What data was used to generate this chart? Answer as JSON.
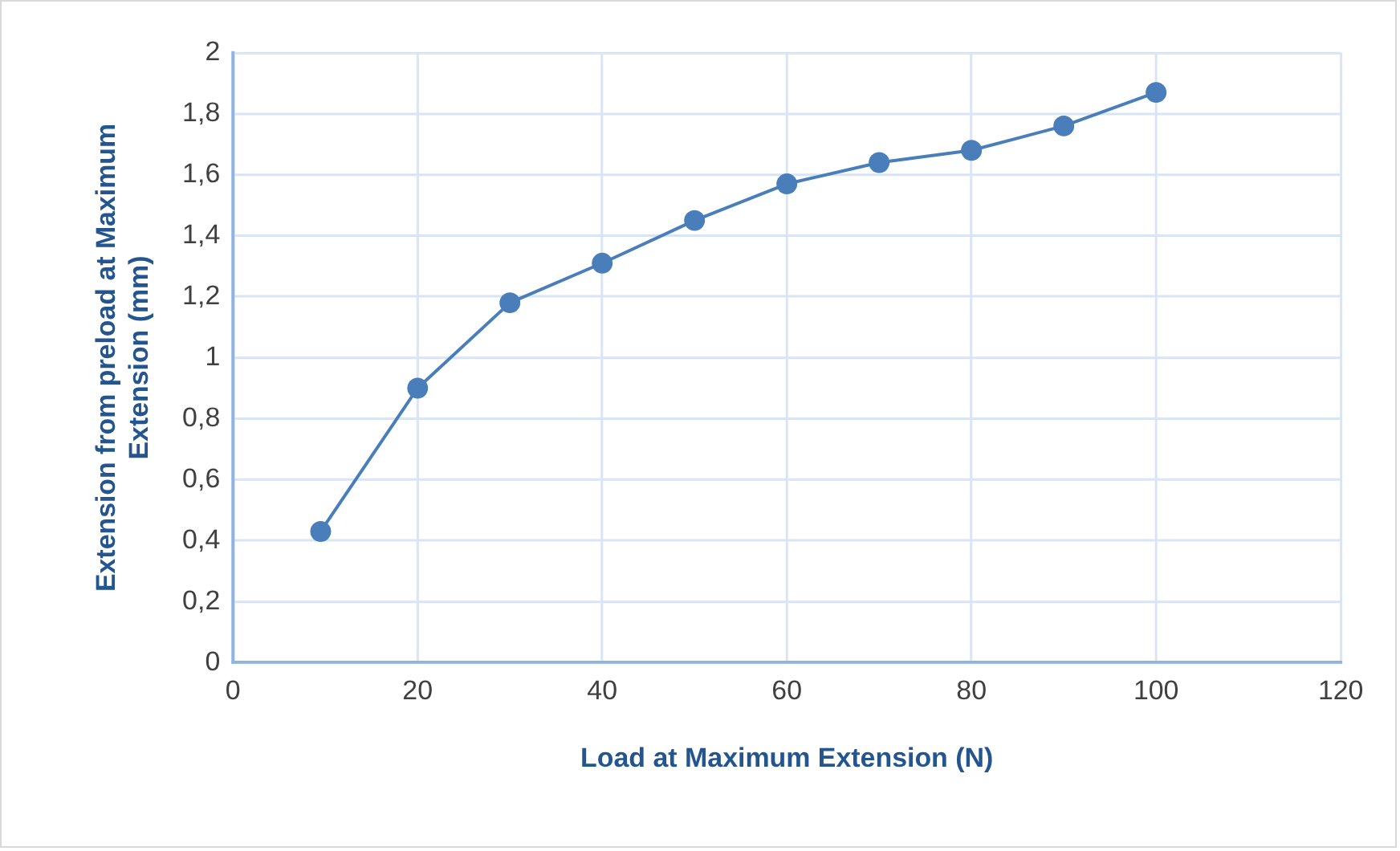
{
  "chart_data": {
    "type": "line",
    "xlabel": "Load at Maximum Extension (N)",
    "ylabel": "Extension from preload at Maximum Extension (mm)",
    "x": [
      9.5,
      20,
      30,
      40,
      50,
      60,
      70,
      80,
      90,
      100
    ],
    "series": [
      {
        "color": "#4a7ebb",
        "values": [
          0.43,
          0.9,
          1.18,
          1.31,
          1.45,
          1.57,
          1.64,
          1.68,
          1.76,
          1.87
        ]
      }
    ],
    "xlim": [
      0,
      120
    ],
    "xticks": [
      0,
      20,
      40,
      60,
      80,
      100,
      120
    ],
    "ylim": [
      0,
      2
    ],
    "yticks": [
      0,
      {
        "value": 0.2,
        "label": "0,2"
      },
      {
        "value": 0.4,
        "label": "0,4"
      },
      {
        "value": 0.6,
        "label": "0,6"
      },
      {
        "value": 0.8,
        "label": "0,8"
      },
      1,
      {
        "value": 1.2,
        "label": "1,2"
      },
      {
        "value": 1.4,
        "label": "1,4"
      },
      {
        "value": 1.6,
        "label": "1,6"
      },
      {
        "value": 1.8,
        "label": "1,8"
      },
      2
    ],
    "grid": true,
    "marker": "circle",
    "line_style": "solid"
  }
}
